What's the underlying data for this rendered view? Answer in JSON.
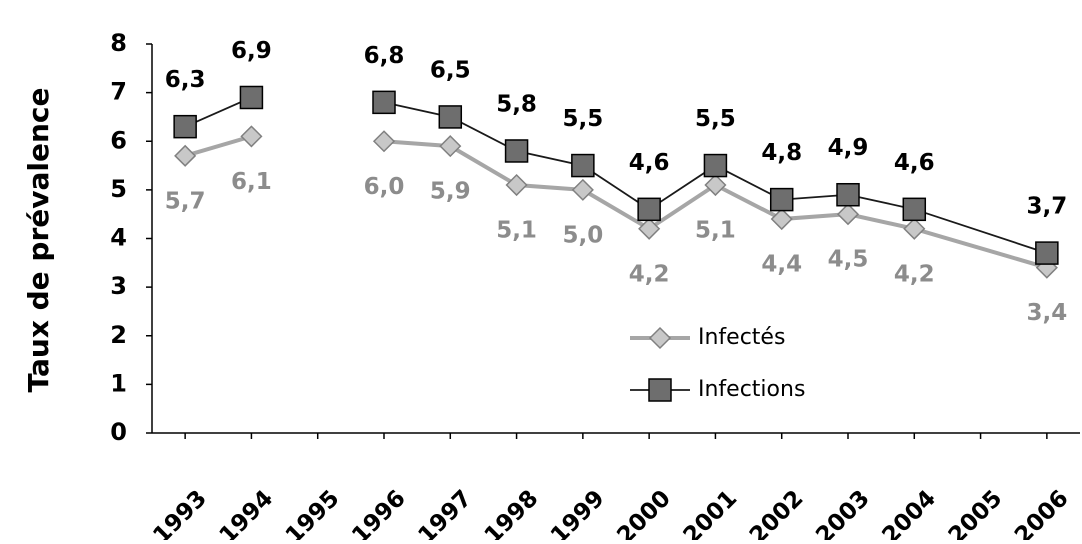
{
  "chart_data": {
    "type": "line",
    "y_label": "Taux de prévalence",
    "x": [
      1993,
      1994,
      1995,
      1996,
      1997,
      1998,
      1999,
      2000,
      2001,
      2002,
      2003,
      2004,
      2006
    ],
    "xlim": [
      1992.5,
      2006.5
    ],
    "xticks": [
      1993,
      1994,
      1995,
      1996,
      1997,
      1998,
      1999,
      2000,
      2001,
      2002,
      2003,
      2004,
      2005,
      2006
    ],
    "ylim": [
      0,
      8
    ],
    "yticks": [
      0,
      1,
      2,
      3,
      4,
      5,
      6,
      7,
      8
    ],
    "legend": "center",
    "series": [
      {
        "name": "Infectés",
        "color": "#a6a6a6",
        "marker": "diamond",
        "values": [
          5.7,
          6.1,
          null,
          6.0,
          5.9,
          5.1,
          5.0,
          4.2,
          5.1,
          4.4,
          4.5,
          4.2,
          3.4
        ],
        "value_labels": [
          "5,7",
          "6,1",
          null,
          "6,0",
          "5,9",
          "5,1",
          "5,0",
          "4,2",
          "5,1",
          "4,4",
          "4,5",
          "4,2",
          "3,4"
        ]
      },
      {
        "name": "Infections",
        "color": "#1a1a1a",
        "marker": "square",
        "values": [
          6.3,
          6.9,
          null,
          6.8,
          6.5,
          5.8,
          5.5,
          4.6,
          5.5,
          4.8,
          4.9,
          4.6,
          3.7
        ],
        "value_labels": [
          "6,3",
          "6,9",
          null,
          "6,8",
          "6,5",
          "5,8",
          "5,5",
          "4,6",
          "5,5",
          "4,8",
          "4,9",
          "4,6",
          "3,7"
        ]
      }
    ]
  }
}
